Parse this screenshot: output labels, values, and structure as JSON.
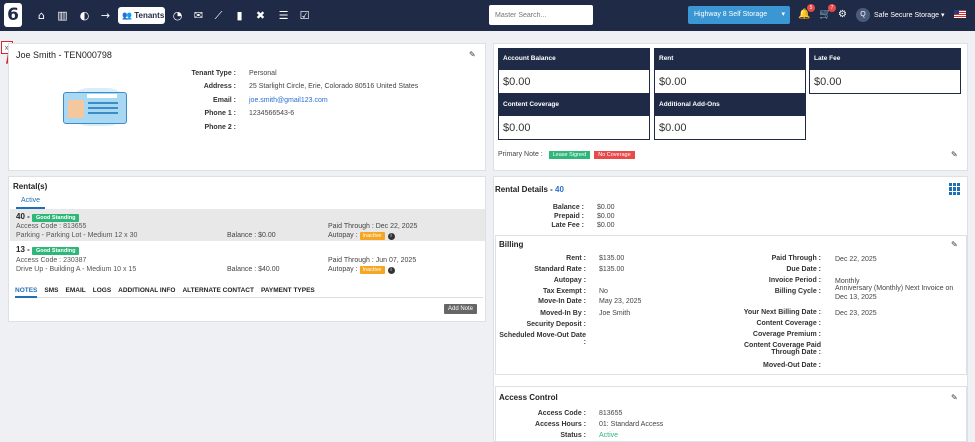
{
  "nav": {
    "logo": "6",
    "tenants_label": "Tenants",
    "search_placeholder": "Master Search...",
    "facility": "Highway 8 Self Storage",
    "notif_count": "5",
    "cart_count": "7",
    "user_initial": "Q",
    "user_name": "Safe Secure Storage",
    "icons": [
      "home-icon",
      "map-icon",
      "dashboard-icon",
      "arrow-right-icon",
      "users-icon",
      "chart-pie-icon",
      "mail-icon",
      "line-chart-icon",
      "bar-chart-icon",
      "user-remove-icon",
      "list-icon",
      "checkbox-icon"
    ]
  },
  "tenant": {
    "name": "Joe Smith",
    "id": "TEN000798",
    "fields": [
      {
        "label": "Tenant Type :",
        "value": "Personal"
      },
      {
        "label": "Address :",
        "value": "25 Starlight Circle, Erie, Colorado 80516 United States"
      },
      {
        "label": "Email :",
        "value": "joe.smith@gmail123.com"
      },
      {
        "label": "Phone 1 :",
        "value": "1234566543-6"
      },
      {
        "label": "Phone 2 :",
        "value": ""
      }
    ]
  },
  "rentals": {
    "title": "Rental(s)",
    "tab": "Active",
    "items": [
      {
        "unit": "40 -",
        "standing": "Good Standing",
        "access": "Access Code : 813655",
        "desc": "Parking - Parking Lot - Medium 12 x 30",
        "balance": "Balance : $0.00",
        "paid": "Paid Through : Dec 22, 2025",
        "autopay": "Autopay :",
        "autopay_status": "Inactive"
      },
      {
        "unit": "13 -",
        "standing": "Good Standing",
        "access": "Access Code : 230387",
        "desc": "Drive Up - Building A - Medium 10 x 15",
        "balance": "Balance : $40.00",
        "paid": "Paid Through : Jun 07, 2025",
        "autopay": "Autopay :",
        "autopay_status": "Inactive"
      }
    ],
    "bottom_tabs": [
      "NOTES",
      "SMS",
      "EMAIL",
      "LOGS",
      "ADDITIONAL INFO",
      "ALTERNATE CONTACT",
      "PAYMENT TYPES"
    ],
    "add_note": "Add Note"
  },
  "kpis": [
    {
      "title": "Account Balance",
      "value": "$0.00"
    },
    {
      "title": "Rent",
      "value": "$0.00"
    },
    {
      "title": "Late Fee",
      "value": "$0.00"
    },
    {
      "title": "Content Coverage",
      "value": "$0.00"
    },
    {
      "title": "Additional Add-Ons",
      "value": "$0.00"
    }
  ],
  "primary_note": {
    "label": "Primary Note :",
    "pills": [
      "Lease Signed",
      "No Coverage"
    ]
  },
  "rental_details": {
    "title": "Rental Details -",
    "unit": "40",
    "summary": [
      {
        "label": "Balance :",
        "value": "$0.00"
      },
      {
        "label": "Prepaid :",
        "value": "$0.00"
      },
      {
        "label": "Late Fee :",
        "value": "$0.00"
      }
    ]
  },
  "billing": {
    "title": "Billing",
    "left": [
      {
        "label": "Rent :",
        "value": "$135.00"
      },
      {
        "label": "Standard Rate :",
        "value": "$135.00"
      },
      {
        "label": "Autopay :",
        "value": ""
      },
      {
        "label": "Tax Exempt :",
        "value": "No"
      },
      {
        "label": "Move-In Date :",
        "value": "May 23, 2025"
      },
      {
        "label": "Moved-In By :",
        "value": "Joe Smith"
      },
      {
        "label": "Security Deposit :",
        "value": ""
      },
      {
        "label": "Scheduled Move-Out Date :",
        "value": ""
      }
    ],
    "right": [
      {
        "label": "Paid Through :",
        "value": "Dec 22, 2025"
      },
      {
        "label": "Due Date :",
        "value": ""
      },
      {
        "label": "Invoice Period :",
        "value": "Monthly"
      },
      {
        "label": "Billing Cycle :",
        "value": "Anniversary (Monthly) Next Invoice on Dec 13, 2025"
      },
      {
        "label": "Your Next Billing Date :",
        "value": "Dec 23, 2025"
      },
      {
        "label": "Content Coverage :",
        "value": ""
      },
      {
        "label": "Coverage Premium :",
        "value": ""
      },
      {
        "label": "Content Coverage Paid Through Date :",
        "value": ""
      },
      {
        "label": "Moved-Out Date :",
        "value": ""
      }
    ]
  },
  "access": {
    "title": "Access Control",
    "rows": [
      {
        "label": "Access Code :",
        "value": "813655"
      },
      {
        "label": "Access Hours :",
        "value": "01: Standard Access"
      },
      {
        "label": "Status :",
        "value": "Active"
      }
    ]
  },
  "colors": {
    "navy": "#1f2b46",
    "green": "#2fb77a",
    "orange": "#f5a623",
    "red": "#e84a4a",
    "blue": "#3a97d4",
    "annotation": "#d9262b"
  }
}
